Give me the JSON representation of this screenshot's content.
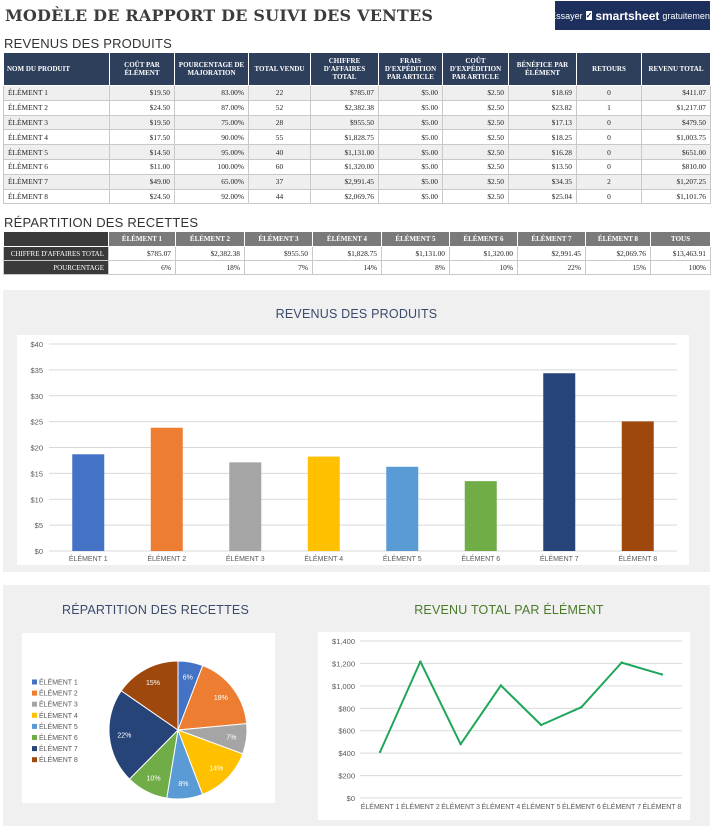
{
  "title": "MODÈLE DE RAPPORT DE SUIVI DES VENTES",
  "cta": {
    "try": "Essayer",
    "brand": "smartsheet",
    "free": "gratuitement."
  },
  "revenus_section": {
    "title": "REVENUS DES PRODUITS",
    "headers": [
      "NOM DU PRODUIT",
      "COÛT PAR ÉLÉMENT",
      "POURCENTAGE DE MAJORATION",
      "TOTAL VENDU",
      "CHIFFRE D'AFFAIRES TOTAL",
      "FRAIS D'EXPÉDITION PAR ARTICLE",
      "COÛT D'EXPÉDITION PAR ARTICLE",
      "BÉNÉFICE PAR ÉLÉMENT",
      "RETOURS",
      "REVENU TOTAL"
    ],
    "rows": [
      [
        "ÉLÉMENT 1",
        "$19.50",
        "83.00%",
        "22",
        "$785.07",
        "$5.00",
        "$2.50",
        "$18.69",
        "0",
        "$411.07"
      ],
      [
        "ÉLÉMENT 2",
        "$24.50",
        "87.00%",
        "52",
        "$2,382.38",
        "$5.00",
        "$2.50",
        "$23.82",
        "1",
        "$1,217.07"
      ],
      [
        "ÉLÉMENT 3",
        "$19.50",
        "75.00%",
        "28",
        "$955.50",
        "$5.00",
        "$2.50",
        "$17.13",
        "0",
        "$479.50"
      ],
      [
        "ÉLÉMENT 4",
        "$17.50",
        "90.00%",
        "55",
        "$1,828.75",
        "$5.00",
        "$2.50",
        "$18.25",
        "0",
        "$1,003.75"
      ],
      [
        "ÉLÉMENT 5",
        "$14.50",
        "95.00%",
        "40",
        "$1,131.00",
        "$5.00",
        "$2.50",
        "$16.28",
        "0",
        "$651.00"
      ],
      [
        "ÉLÉMENT 6",
        "$11.00",
        "100.00%",
        "60",
        "$1,320.00",
        "$5.00",
        "$2.50",
        "$13.50",
        "0",
        "$810.00"
      ],
      [
        "ÉLÉMENT 7",
        "$49.00",
        "65.00%",
        "37",
        "$2,991.45",
        "$5.00",
        "$2.50",
        "$34.35",
        "2",
        "$1,207.25"
      ],
      [
        "ÉLÉMENT 8",
        "$24.50",
        "92.00%",
        "44",
        "$2,069.76",
        "$5.00",
        "$2.50",
        "$25.04",
        "0",
        "$1,101.76"
      ]
    ]
  },
  "repartition_section": {
    "title": "RÉPARTITION DES RECETTES",
    "headers": [
      "ÉLÉMENT 1",
      "ÉLÉMENT 2",
      "ÉLÉMENT 3",
      "ÉLÉMENT 4",
      "ÉLÉMENT 5",
      "ÉLÉMENT 6",
      "ÉLÉMENT 7",
      "ÉLÉMENT 8",
      "TOUS"
    ],
    "rows": [
      {
        "label": "CHIFFRE D'AFFAIRES TOTAL",
        "values": [
          "$785.07",
          "$2,382.38",
          "$955.50",
          "$1,828.75",
          "$1,131.00",
          "$1,320.00",
          "$2,991.45",
          "$2,069.76",
          "$13,463.91"
        ]
      },
      {
        "label": "POURCENTAGE",
        "values": [
          "6%",
          "18%",
          "7%",
          "14%",
          "8%",
          "10%",
          "22%",
          "15%",
          "100%"
        ]
      }
    ]
  },
  "colors": {
    "series": [
      "#4472c4",
      "#ed7d31",
      "#a5a5a5",
      "#ffc000",
      "#5b9bd5",
      "#70ad47",
      "#264478",
      "#9e480e"
    ],
    "line": "#1fa65a",
    "line_title": "#4a7a2a"
  },
  "chart_data": [
    {
      "type": "bar",
      "title": "REVENUS DES PRODUITS",
      "categories": [
        "ÉLÉMENT 1",
        "ÉLÉMENT 2",
        "ÉLÉMENT 3",
        "ÉLÉMENT 4",
        "ÉLÉMENT 5",
        "ÉLÉMENT 6",
        "ÉLÉMENT 7",
        "ÉLÉMENT 8"
      ],
      "values": [
        18.69,
        23.82,
        17.13,
        18.25,
        16.28,
        13.5,
        34.35,
        25.04
      ],
      "ylim": [
        0,
        40
      ],
      "yticks": [
        "$0",
        "$5",
        "$10",
        "$15",
        "$20",
        "$25",
        "$30",
        "$35",
        "$40"
      ],
      "grid": true
    },
    {
      "type": "pie",
      "title": "RÉPARTITION DES RECETTES",
      "categories": [
        "ÉLÉMENT 1",
        "ÉLÉMENT 2",
        "ÉLÉMENT 3",
        "ÉLÉMENT 4",
        "ÉLÉMENT 5",
        "ÉLÉMENT 6",
        "ÉLÉMENT 7",
        "ÉLÉMENT 8"
      ],
      "values": [
        785.07,
        2382.38,
        955.5,
        1828.75,
        1131.0,
        1320.0,
        2991.45,
        2069.76
      ],
      "labels": [
        "6%",
        "18%",
        "7%",
        "14%",
        "8%",
        "10%",
        "22%",
        "15%"
      ],
      "legend": "left"
    },
    {
      "type": "line",
      "title": "REVENU TOTAL PAR ÉLÉMENT",
      "categories": [
        "ÉLÉMENT 1",
        "ÉLÉMENT 2",
        "ÉLÉMENT 3",
        "ÉLÉMENT 4",
        "ÉLÉMENT 5",
        "ÉLÉMENT 6",
        "ÉLÉMENT 7",
        "ÉLÉMENT 8"
      ],
      "values": [
        411.07,
        1217.07,
        479.5,
        1003.75,
        651.0,
        810.0,
        1207.25,
        1101.76
      ],
      "ylim": [
        0,
        1400
      ],
      "yticks": [
        "$0",
        "$200",
        "$400",
        "$600",
        "$800",
        "$1,000",
        "$1,200",
        "$1,400"
      ],
      "grid": true
    }
  ]
}
